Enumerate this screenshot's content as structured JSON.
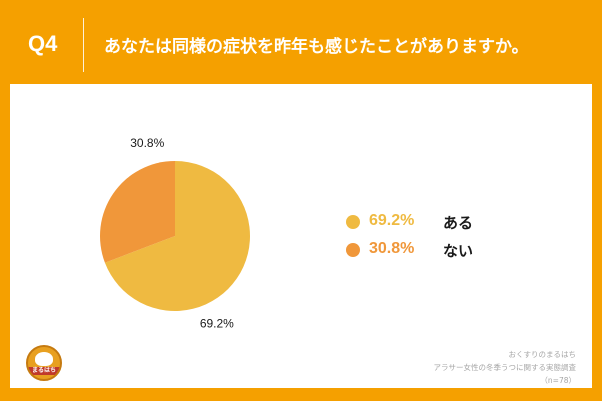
{
  "header": {
    "question_number": "Q4",
    "question_text": "あなたは同様の症状を昨年も感じたことがありますか。"
  },
  "chart_data": {
    "type": "pie",
    "title": "",
    "start_angle_deg": 0,
    "direction": "clockwise",
    "slices": [
      {
        "name": "ある",
        "value": 69.2,
        "label": "69.2%",
        "color": "#efba41"
      },
      {
        "name": "ない",
        "value": 30.8,
        "label": "30.8%",
        "color": "#f0973a"
      }
    ],
    "legend_position": "right"
  },
  "legend": [
    {
      "value": "69.2%",
      "name": "ある",
      "color": "#efba41"
    },
    {
      "value": "30.8%",
      "name": "ない",
      "color": "#f0973a"
    }
  ],
  "footer": {
    "source_line1": "おくすりのまるはち",
    "source_line2": "アラサー女性の冬季うつに関する実態調査",
    "sample_size": "（n=78）"
  },
  "logo": {
    "icon": "pharmacy-mascot-logo",
    "text": "まるはち"
  }
}
